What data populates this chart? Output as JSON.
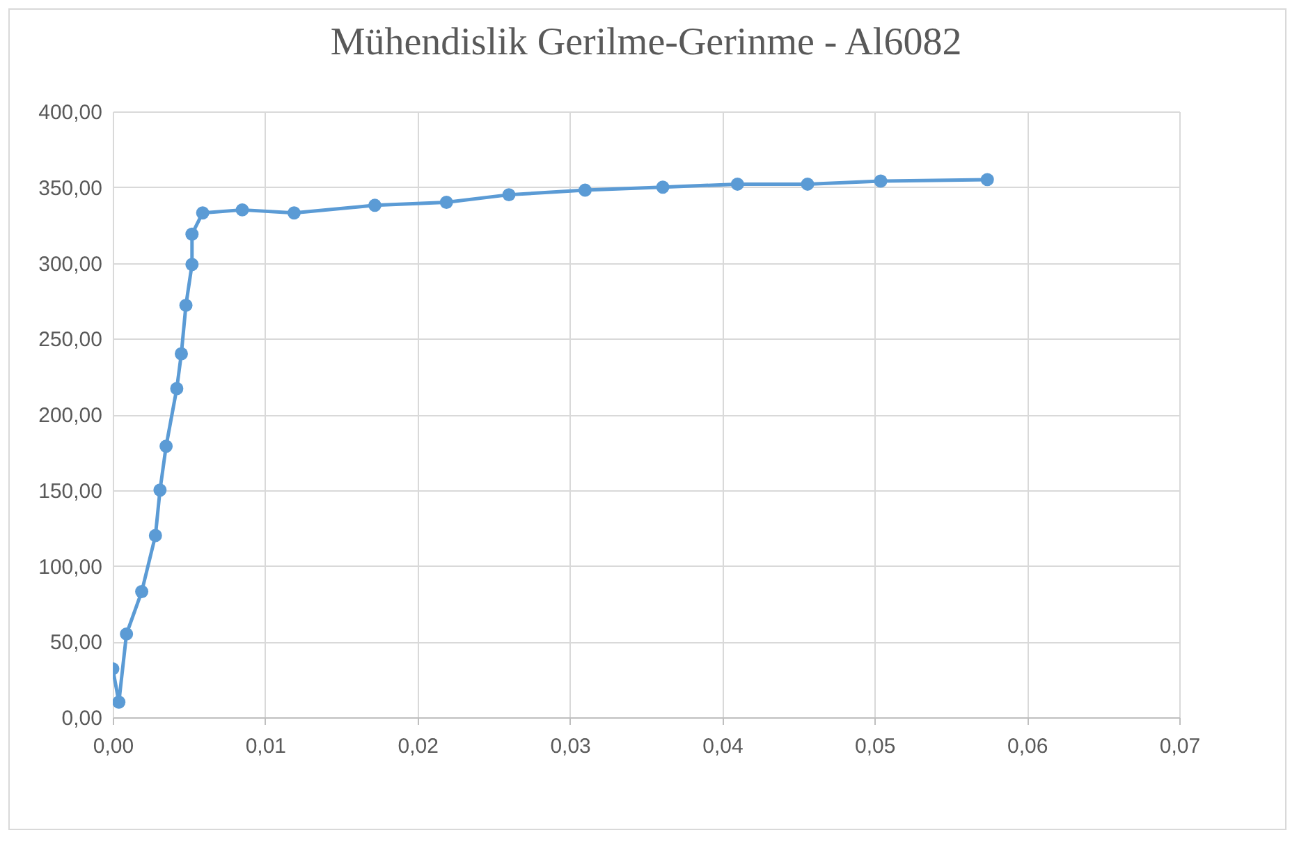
{
  "chart_data": {
    "type": "line",
    "title": "Mühendislik Gerilme-Gerinme - Al6082",
    "x": [
      0,
      0.0004,
      0.0009,
      0.0019,
      0.0028,
      0.0031,
      0.0035,
      0.0042,
      0.0045,
      0.0048,
      0.0052,
      0.0052,
      0.0059,
      0.0085,
      0.0119,
      0.0172,
      0.0219,
      0.026,
      0.031,
      0.0361,
      0.041,
      0.0456,
      0.0504,
      0.0574
    ],
    "series": [
      {
        "color": "#5b9bd5",
        "values": [
          32,
          10,
          55,
          83,
          120,
          150,
          179,
          217,
          240,
          272,
          299,
          319,
          333,
          335,
          333,
          338,
          340,
          345,
          348,
          350,
          352,
          352,
          354,
          355
        ]
      }
    ],
    "xlim": [
      0,
      0.07
    ],
    "xticks": [
      {
        "value": 0,
        "label": "0,00"
      },
      {
        "value": 0.01,
        "label": "0,01"
      },
      {
        "value": 0.02,
        "label": "0,02"
      },
      {
        "value": 0.03,
        "label": "0,03"
      },
      {
        "value": 0.04,
        "label": "0,04"
      },
      {
        "value": 0.05,
        "label": "0,05"
      },
      {
        "value": 0.06,
        "label": "0,06"
      },
      {
        "value": 0.07,
        "label": "0,07"
      }
    ],
    "ylim": [
      0,
      400
    ],
    "yticks": [
      {
        "value": 0,
        "label": "0,00"
      },
      {
        "value": 50,
        "label": "50,00"
      },
      {
        "value": 100,
        "label": "100,00"
      },
      {
        "value": 150,
        "label": "150,00"
      },
      {
        "value": 200,
        "label": "200,00"
      },
      {
        "value": 250,
        "label": "250,00"
      },
      {
        "value": 300,
        "label": "300,00"
      },
      {
        "value": 350,
        "label": "350,00"
      },
      {
        "value": 400,
        "label": "400,00"
      }
    ],
    "grid": true,
    "marker": "circle",
    "line_style": "solid"
  }
}
